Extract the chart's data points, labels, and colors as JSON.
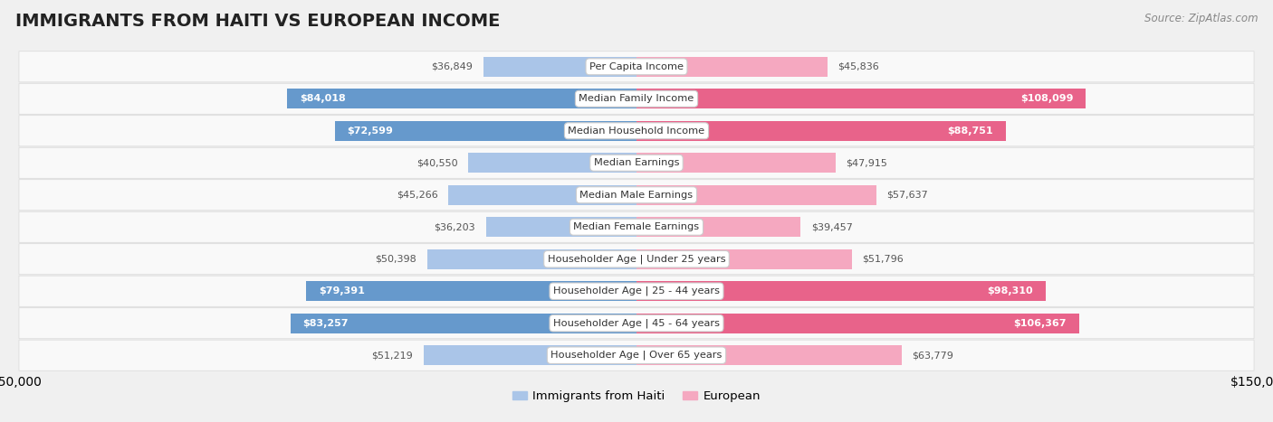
{
  "title": "IMMIGRANTS FROM HAITI VS EUROPEAN INCOME",
  "source": "Source: ZipAtlas.com",
  "categories": [
    "Per Capita Income",
    "Median Family Income",
    "Median Household Income",
    "Median Earnings",
    "Median Male Earnings",
    "Median Female Earnings",
    "Householder Age | Under 25 years",
    "Householder Age | 25 - 44 years",
    "Householder Age | 45 - 64 years",
    "Householder Age | Over 65 years"
  ],
  "haiti_values": [
    36849,
    84018,
    72599,
    40550,
    45266,
    36203,
    50398,
    79391,
    83257,
    51219
  ],
  "european_values": [
    45836,
    108099,
    88751,
    47915,
    57637,
    39457,
    51796,
    98310,
    106367,
    63779
  ],
  "haiti_color_light": "#aac5e8",
  "haiti_color_dark": "#6699cc",
  "european_color_light": "#f5a8c0",
  "european_color_dark": "#e8638a",
  "axis_limit": 150000,
  "bar_height": 0.62,
  "background_color": "#f0f0f0",
  "row_color": "#f8f8f8",
  "legend_haiti_label": "Immigrants from Haiti",
  "legend_european_label": "European",
  "title_fontsize": 14,
  "tick_label_fontsize": 10
}
